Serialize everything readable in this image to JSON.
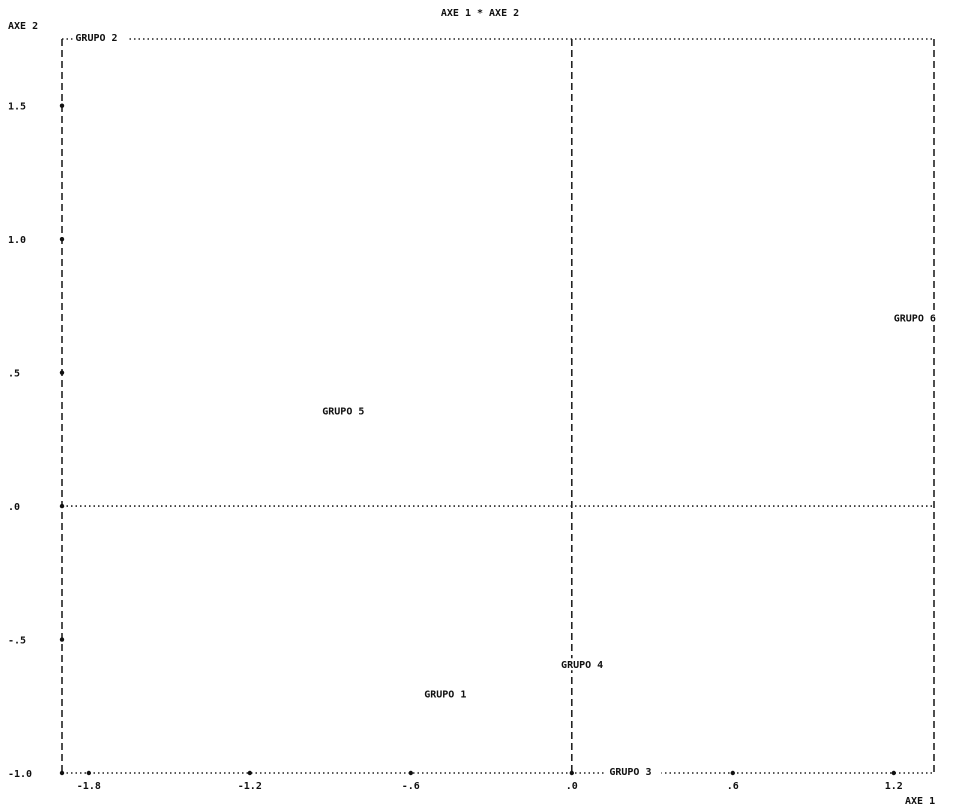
{
  "chart_data": {
    "type": "scatter",
    "title": "AXE 1  *  AXE 2",
    "xlabel": "AXE 1",
    "ylabel": "AXE 2",
    "xlim": [
      -1.9,
      1.35
    ],
    "ylim": [
      -1.0,
      1.75
    ],
    "x_ticks": [
      {
        "value": -1.8,
        "label": "-1.8"
      },
      {
        "value": -1.2,
        "label": "-1.2"
      },
      {
        "value": -0.6,
        "label": "-.6"
      },
      {
        "value": 0.0,
        "label": ".0"
      },
      {
        "value": 0.6,
        "label": ".6"
      },
      {
        "value": 1.2,
        "label": "1.2"
      }
    ],
    "y_ticks": [
      {
        "value": -1.0,
        "label": "-1.0"
      },
      {
        "value": -0.5,
        "label": "-.5"
      },
      {
        "value": 0.0,
        "label": ".0"
      },
      {
        "value": 0.5,
        "label": ".5"
      },
      {
        "value": 1.0,
        "label": "1.0"
      },
      {
        "value": 1.5,
        "label": "1.5"
      }
    ],
    "reference_lines": {
      "x": 0.0,
      "y": 0.0
    },
    "grid": false,
    "points": [
      {
        "label": "GRUPO 1",
        "x": -0.55,
        "y": -0.71
      },
      {
        "label": "GRUPO 2",
        "x": -1.85,
        "y": 1.75
      },
      {
        "label": "GRUPO 3",
        "x": 0.14,
        "y": -1.0
      },
      {
        "label": "GRUPO 4",
        "x": -0.04,
        "y": -0.6
      },
      {
        "label": "GRUPO 5",
        "x": -0.93,
        "y": 0.35
      },
      {
        "label": "GRUPO 6",
        "x": 1.2,
        "y": 0.7
      }
    ]
  }
}
